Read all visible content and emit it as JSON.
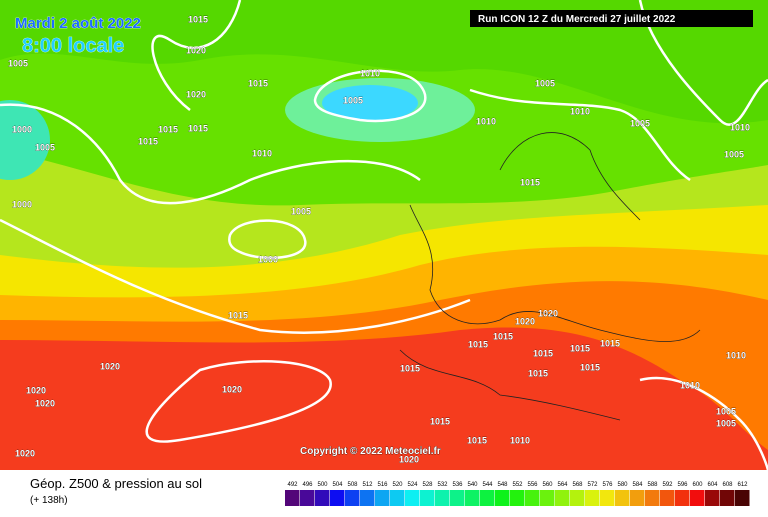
{
  "header": {
    "date": "Mardi 2 août 2022",
    "time": "8:00 locale",
    "run": "Run ICON 12 Z du Mercredi 27 juillet 2022"
  },
  "copyright": "Copyright © 2022 Meteociel.fr",
  "footer": {
    "title": "Géop. Z500 & pression au sol",
    "lead": "(+ 138h)"
  },
  "colorbar": {
    "ticks": [
      492,
      496,
      500,
      504,
      508,
      512,
      516,
      520,
      524,
      528,
      532,
      536,
      540,
      544,
      548,
      552,
      556,
      560,
      564,
      568,
      572,
      576,
      580,
      584,
      588,
      592,
      596,
      600,
      604,
      608,
      612
    ]
  },
  "isobars": [
    "1015",
    "1020",
    "1005",
    "1010",
    "1005",
    "1005",
    "1015",
    "1020",
    "1010",
    "1010",
    "1005",
    "1010",
    "1000",
    "1015",
    "1015",
    "1015",
    "1005",
    "1010",
    "1005",
    "1015",
    "1000",
    "1005",
    "1000",
    "1015",
    "1020",
    "1020",
    "1015",
    "1015",
    "1015",
    "1015",
    "1015",
    "1010",
    "1020",
    "1015",
    "1015",
    "1015",
    "1020",
    "1020",
    "1020",
    "1010",
    "1005",
    "1005",
    "1015",
    "1015",
    "1010",
    "1020",
    "1020"
  ]
}
